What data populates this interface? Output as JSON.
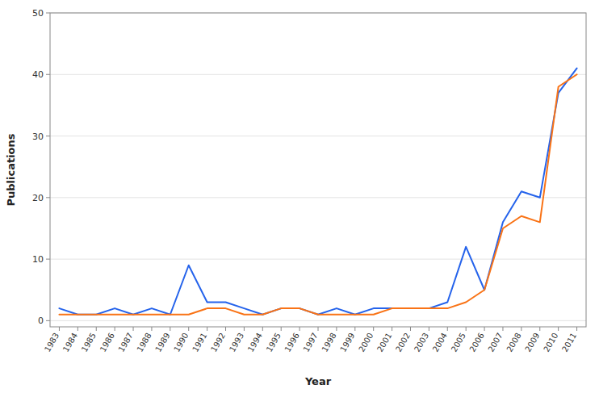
{
  "chart_data": {
    "type": "line",
    "x": [
      1983,
      1984,
      1985,
      1986,
      1987,
      1988,
      1989,
      1990,
      1991,
      1992,
      1993,
      1994,
      1995,
      1996,
      1997,
      1998,
      1999,
      2000,
      2001,
      2002,
      2003,
      2004,
      2005,
      2006,
      2007,
      2008,
      2009,
      2010,
      2011
    ],
    "series": [
      {
        "values": [
          2,
          1,
          1,
          2,
          1,
          2,
          1,
          9,
          3,
          3,
          2,
          1,
          2,
          2,
          1,
          2,
          1,
          2,
          2,
          2,
          2,
          3,
          12,
          5,
          16,
          21,
          20,
          37,
          41
        ]
      },
      {
        "values": [
          1,
          1,
          1,
          1,
          1,
          1,
          1,
          1,
          2,
          2,
          1,
          1,
          2,
          2,
          1,
          1,
          1,
          1,
          2,
          2,
          2,
          2,
          3,
          5,
          15,
          17,
          16,
          38,
          40
        ]
      }
    ],
    "xlabel": "Year",
    "ylabel": "Publications",
    "xlim": [
      1982.5,
      2011.5
    ],
    "xticks": [
      1983,
      1984,
      1985,
      1986,
      1987,
      1988,
      1989,
      1990,
      1991,
      1992,
      1993,
      1994,
      1995,
      1996,
      1997,
      1998,
      1999,
      2000,
      2001,
      2002,
      2003,
      2004,
      2005,
      2006,
      2007,
      2008,
      2009,
      2010,
      2011
    ],
    "ylim": [
      -1,
      50
    ],
    "yticks": [
      0,
      10,
      20,
      30,
      40,
      50
    ],
    "grid": true
  }
}
